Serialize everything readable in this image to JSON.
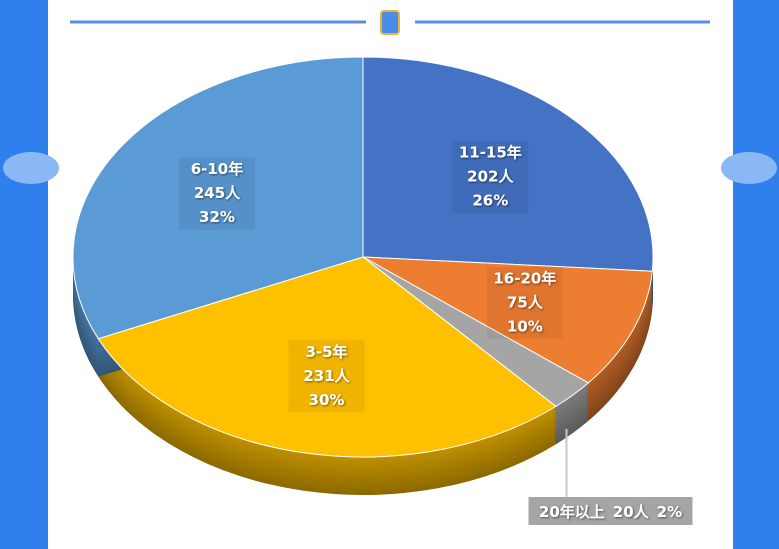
{
  "chart_data": {
    "type": "pie",
    "categories": [
      "11-15年",
      "16-20年",
      "20年以上",
      "3-5年",
      "6-10年"
    ],
    "values": [
      202,
      75,
      20,
      231,
      245
    ],
    "value_labels": [
      "202人",
      "75人",
      "20人",
      "231人",
      "245人"
    ],
    "percents": [
      26,
      10,
      2,
      30,
      32
    ],
    "percent_labels": [
      "26%",
      "10%",
      "2%",
      "30%",
      "32%"
    ],
    "colors": [
      "#4472c4",
      "#ed7d31",
      "#a5a5a5",
      "#ffc000",
      "#5b9bd5"
    ]
  }
}
